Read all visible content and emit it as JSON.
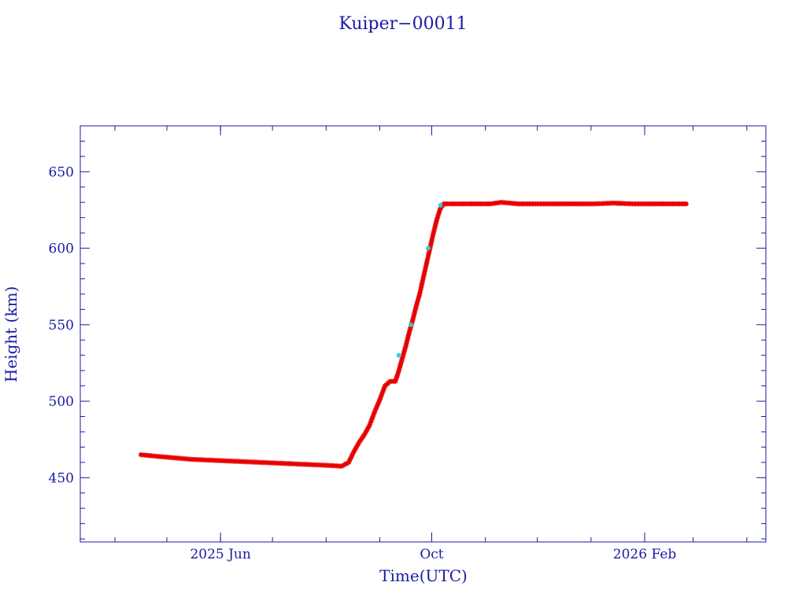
{
  "colors": {
    "axis": "#1a1aa6",
    "text": "#1a1aa6",
    "series_primary": "#e60000",
    "series_secondary": "#33cccc",
    "background": "#ffffff"
  },
  "chart_data": {
    "type": "scatter",
    "title": "Kuiper−00011",
    "xlabel": "Time(UTC)",
    "ylabel": "Height (km)",
    "xlim": [
      "2025-03-12",
      "2026-04-12"
    ],
    "ylim": [
      408,
      680
    ],
    "y_ticks": [
      450,
      500,
      550,
      600,
      650
    ],
    "x_ticks": [
      {
        "date": "2025-06-01",
        "label": "2025 Jun"
      },
      {
        "date": "2025-10-01",
        "label": "Oct"
      },
      {
        "date": "2026-02-01",
        "label": "2026 Feb"
      }
    ],
    "grid": false,
    "legend": "none",
    "series": [
      {
        "marker": "star",
        "points": [
          [
            "2025-04-16",
            465
          ],
          [
            "2025-04-25",
            464
          ],
          [
            "2025-05-05",
            463
          ],
          [
            "2025-05-15",
            462
          ],
          [
            "2025-05-25",
            461.5
          ],
          [
            "2025-06-04",
            461
          ],
          [
            "2025-06-14",
            460.5
          ],
          [
            "2025-06-24",
            460
          ],
          [
            "2025-07-04",
            459.5
          ],
          [
            "2025-07-14",
            459
          ],
          [
            "2025-07-24",
            458.5
          ],
          [
            "2025-08-03",
            458
          ],
          [
            "2025-08-10",
            457.5
          ],
          [
            "2025-08-14",
            460
          ],
          [
            "2025-08-17",
            467
          ],
          [
            "2025-08-20",
            473
          ],
          [
            "2025-08-23",
            478
          ],
          [
            "2025-08-26",
            484
          ],
          [
            "2025-08-29",
            493
          ],
          [
            "2025-09-01",
            501
          ],
          [
            "2025-09-04",
            510
          ],
          [
            "2025-09-07",
            513
          ],
          [
            "2025-09-10",
            513
          ],
          [
            "2025-09-12",
            520
          ],
          [
            "2025-09-14",
            528
          ],
          [
            "2025-09-16",
            536
          ],
          [
            "2025-09-18",
            545
          ],
          [
            "2025-09-20",
            553
          ],
          [
            "2025-09-22",
            562
          ],
          [
            "2025-09-24",
            570
          ],
          [
            "2025-09-26",
            580
          ],
          [
            "2025-09-28",
            590
          ],
          [
            "2025-09-30",
            600
          ],
          [
            "2025-10-02",
            610
          ],
          [
            "2025-10-04",
            619
          ],
          [
            "2025-10-06",
            626
          ],
          [
            "2025-10-08",
            629
          ],
          [
            "2025-10-15",
            629
          ],
          [
            "2025-10-25",
            629
          ],
          [
            "2025-11-04",
            629
          ],
          [
            "2025-11-10",
            630
          ],
          [
            "2025-11-20",
            629
          ],
          [
            "2025-12-01",
            629
          ],
          [
            "2025-12-12",
            629
          ],
          [
            "2025-12-23",
            629
          ],
          [
            "2026-01-03",
            629
          ],
          [
            "2026-01-14",
            629.5
          ],
          [
            "2026-01-25",
            629
          ],
          [
            "2026-02-05",
            629
          ],
          [
            "2026-02-15",
            629
          ],
          [
            "2026-02-25",
            629
          ]
        ]
      },
      {
        "marker": "star",
        "points": [
          [
            "2025-09-12",
            530
          ],
          [
            "2025-09-19",
            550
          ],
          [
            "2025-09-29",
            600
          ],
          [
            "2025-10-06",
            628
          ]
        ]
      }
    ]
  }
}
